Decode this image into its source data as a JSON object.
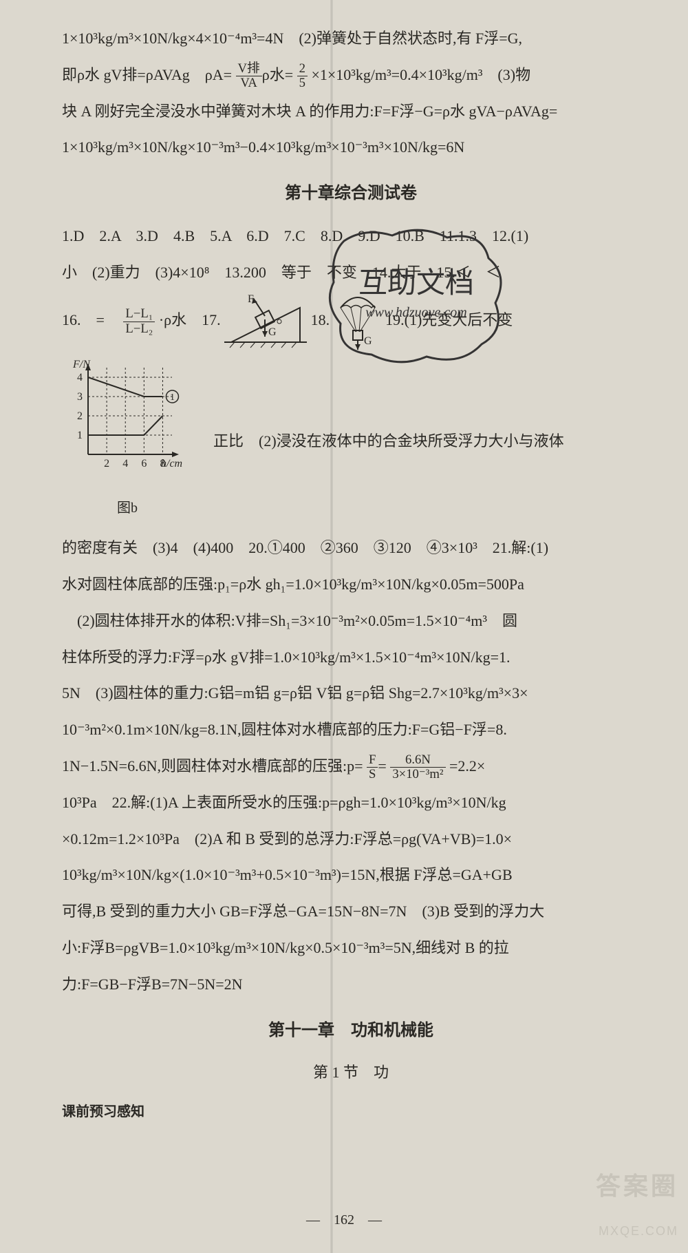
{
  "lines": {
    "l1": "1×10³kg/m³×10N/kg×4×10⁻⁴m³=4N　(2)弹簧处于自然状态时,有 F浮=G,",
    "l2a": "即ρ水 gV排=ρAVAg　ρA=",
    "l2b": "×1×10³kg/m³=0.4×10³kg/m³　(3)物",
    "l3": "块 A 刚好完全浸没水中弹簧对木块 A 的作用力:F=F浮−G=ρ水 gVA−ρAVAg=",
    "l4": "1×10³kg/m³×10N/kg×10⁻³m³−0.4×10³kg/m³×10⁻³m³×10N/kg=6N",
    "title1": "第十章综合测试卷",
    "l5": "1.D　2.A　3.D　4.B　5.A　6.D　7.C　8.D　9.D　10.B　11.1.3　12.(1)",
    "l6": "小　(2)重力　(3)4×10⁸　13.200　等于　不变　14.大于　15.＜　＜",
    "l7a": "16.　=　",
    "l7b": "·ρ水　17.",
    "l7c": "18.",
    "l7d": "19.(1)先变大后不变",
    "l8": "正比　(2)浸没在液体中的合金块所受浮力大小与液体",
    "l9": "的密度有关　(3)4　(4)400　20.①400　②360　③120　④3×10³　21.解:(1)",
    "l10": "水对圆柱体底部的压强:p₁=ρ水 gh₁=1.0×10³kg/m³×10N/kg×0.05m=500Pa",
    "l11": "　(2)圆柱体排开水的体积:V排=Sh₁=3×10⁻³m²×0.05m=1.5×10⁻⁴m³　圆",
    "l12": "柱体所受的浮力:F浮=ρ水 gV排=1.0×10³kg/m³×1.5×10⁻⁴m³×10N/kg=1.",
    "l13": "5N　(3)圆柱体的重力:G铝=m铝 g=ρ铝 V铝 g=ρ铝 Shg=2.7×10³kg/m³×3×",
    "l14": "10⁻³m²×0.1m×10N/kg=8.1N,圆柱体对水槽底部的压力:F=G铝−F浮=8.",
    "l15a": "1N−1.5N=6.6N,则圆柱体对水槽底部的压强:p=",
    "l15b": "=2.2×",
    "l16": "10³Pa　22.解:(1)A 上表面所受水的压强:p=ρgh=1.0×10³kg/m³×10N/kg",
    "l17": "×0.12m=1.2×10³Pa　(2)A 和 B 受到的总浮力:F浮总=ρg(VA+VB)=1.0×",
    "l18": "10³kg/m³×10N/kg×(1.0×10⁻³m³+0.5×10⁻³m³)=15N,根据 F浮总=GA+GB",
    "l19": "可得,B 受到的重力大小 GB=F浮总−GA=15N−8N=7N　(3)B 受到的浮力大",
    "l20": "小:F浮B=ρgVB=1.0×10³kg/m³×10N/kg×0.5×10⁻³m³=5N,细线对 B 的拉",
    "l21": "力:F=GB−F浮B=7N−5N=2N",
    "title2": "第十一章　功和机械能",
    "subtitle2": "第 1 节　功",
    "section": "课前预习感知",
    "pagenum": "—　162　—"
  },
  "fracs": {
    "f1": {
      "num": "V排",
      "den": "VA"
    },
    "f2": {
      "num": "2",
      "den": "5"
    },
    "f3": {
      "num": "L−L₁",
      "den": "L−L₂"
    },
    "f4": {
      "num": "F",
      "den": "S"
    },
    "f5": {
      "num": "6.6N",
      "den": "3×10⁻³m²"
    }
  },
  "graph_b": {
    "type": "line",
    "title": "F/N",
    "xlabel": "h/cm",
    "caption": "图b",
    "xlim": [
      0,
      9
    ],
    "ylim": [
      0,
      4.5
    ],
    "xticks": [
      2,
      4,
      6,
      8
    ],
    "yticks": [
      1,
      2,
      3,
      4
    ],
    "series": [
      {
        "label": "①",
        "points": [
          [
            0,
            4
          ],
          [
            6,
            3
          ],
          [
            8,
            3
          ]
        ],
        "color": "#2a2824",
        "width": 2
      },
      {
        "label": "",
        "points": [
          [
            0,
            1
          ],
          [
            6,
            1
          ],
          [
            8,
            2
          ]
        ],
        "color": "#2a2824",
        "width": 2
      }
    ],
    "grid_color": "#2a2824",
    "grid_dash": "3,3",
    "background": "#dcd8ce",
    "axis_color": "#2a2824",
    "fontsize": 16
  },
  "fig17": {
    "type": "diagram-incline",
    "labels": {
      "force": "F",
      "weight": "G"
    },
    "colors": {
      "stroke": "#2a2824",
      "hatch": "#2a2824"
    }
  },
  "fig18": {
    "type": "diagram-parachute",
    "labels": {
      "weight": "G"
    },
    "colors": {
      "stroke": "#2a2824"
    }
  },
  "stamp": {
    "text_main": "互助文档",
    "text_url": "www.hdzuoye.com",
    "stroke": "#353434",
    "font_main_size": 42,
    "font_url_size": 20
  },
  "watermark": {
    "l1": "答案圈",
    "l2": "MXQE.COM",
    "color": "#c8c4ba"
  }
}
